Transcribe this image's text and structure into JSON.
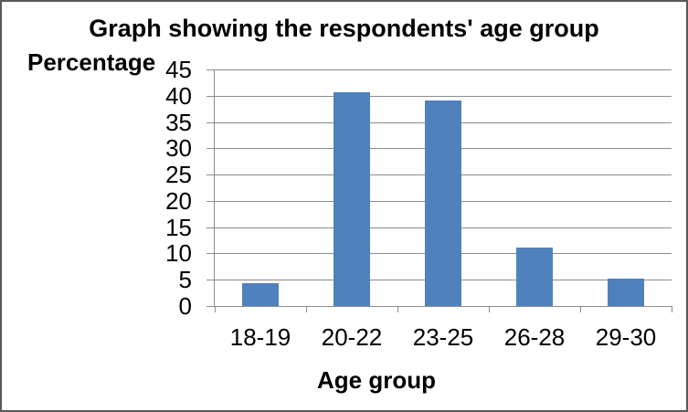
{
  "chart": {
    "title": "Graph showing the respondents' age group",
    "y_axis_title": "Percentage",
    "x_axis_title": "Age group"
  },
  "chart_data": {
    "type": "bar",
    "title": "Graph showing the respondents' age group",
    "xlabel": "Age group",
    "ylabel": "Percentage",
    "categories": [
      "18-19",
      "20-22",
      "23-25",
      "26-28",
      "29-30"
    ],
    "values": [
      4.4,
      40.7,
      39.1,
      11.1,
      5.2
    ],
    "ylim": [
      0,
      45
    ],
    "ytick_step": 5,
    "yticks": [
      45,
      40,
      35,
      30,
      25,
      20,
      15,
      10,
      5,
      0
    ],
    "grid": true,
    "legend": false,
    "bar_color": "#4f81bd",
    "gridline_color": "#8c8c8c",
    "axis_color": "#8c8c8c",
    "frame_border_color": "#595959"
  }
}
